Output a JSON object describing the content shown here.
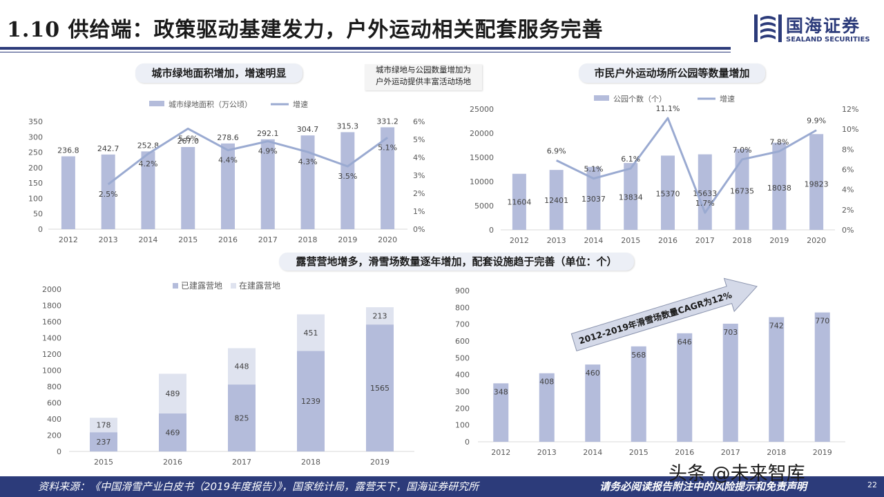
{
  "header": {
    "title": "1.10 供给端：政策驱动基建发力，户外运动相关配套服务完善",
    "logo_name": "国海证券",
    "logo_en": "SEALAND SECURITIES"
  },
  "labels": {
    "green_title": "城市绿地面积增加，增速明显",
    "note_line1": "城市绿地与公园数量增加为",
    "note_line2": "户外运动提供丰富活动场地",
    "park_title": "市民户外运动场所公园等数量增加",
    "camp_title": "露营营地增多，滑雪场数量逐年增加，配套设施趋于完善（单位：个）",
    "cagr_arrow": "2012-2019年滑雪场数量CAGR为12%"
  },
  "footer": {
    "source": "资料来源：《中国滑雪产业白皮书（2019年度报告）》，国家统计局，露营天下，国海证券研究所",
    "disclaimer": "请务必阅读报告附注中的风险提示和免责声明",
    "watermark": "头条 @未来智库",
    "page_number": "22"
  },
  "colors": {
    "bar": "#b4bcdb",
    "bar_light": "#dfe3ef",
    "line": "#9aaad1",
    "navy": "#2c3b7a"
  },
  "chart_data": [
    {
      "id": "green",
      "type": "bar+line",
      "categories": [
        "2012",
        "2013",
        "2014",
        "2015",
        "2016",
        "2017",
        "2018",
        "2019",
        "2020"
      ],
      "series": [
        {
          "name": "城市绿地面积（万公顷）",
          "type": "bar",
          "axis": "left",
          "values": [
            236.8,
            242.7,
            252.8,
            267.0,
            278.6,
            292.1,
            304.7,
            315.3,
            331.2
          ],
          "labels": [
            "236.8",
            "242.7",
            "252.8",
            "267.0",
            "278.6",
            "292.1",
            "304.7",
            "315.3",
            "331.2"
          ]
        },
        {
          "name": "增速",
          "type": "line",
          "axis": "right",
          "values": [
            null,
            2.5,
            4.2,
            5.6,
            4.4,
            4.9,
            4.3,
            3.5,
            5.1
          ],
          "labels": [
            "",
            "2.5%",
            "4.2%",
            "5.6%",
            "4.4%",
            "4.9%",
            "4.3%",
            "3.5%",
            "5.1%"
          ]
        }
      ],
      "ylim": [
        0,
        350
      ],
      "yticks": [
        "0",
        "50",
        "100",
        "150",
        "200",
        "250",
        "300",
        "350"
      ],
      "y2lim": [
        0,
        6
      ],
      "y2ticks": [
        "0%",
        "1%",
        "2%",
        "3%",
        "4%",
        "5%",
        "6%"
      ],
      "legend": "top"
    },
    {
      "id": "parks",
      "type": "bar+line",
      "categories": [
        "2012",
        "2013",
        "2014",
        "2015",
        "2016",
        "2017",
        "2018",
        "2019",
        "2020"
      ],
      "series": [
        {
          "name": "公园个数（个）",
          "type": "bar",
          "axis": "left",
          "values": [
            11604,
            12401,
            13037,
            13834,
            15370,
            15633,
            16735,
            18038,
            19823
          ],
          "labels": [
            "11604",
            "12401",
            "13037",
            "13834",
            "15370",
            "15633",
            "16735",
            "18038",
            "19823"
          ]
        },
        {
          "name": "增速",
          "type": "line",
          "axis": "right",
          "values": [
            null,
            6.9,
            5.1,
            6.1,
            11.1,
            1.7,
            7.0,
            7.8,
            9.9
          ],
          "labels": [
            "",
            "6.9%",
            "5.1%",
            "6.1%",
            "11.1%",
            "1.7%",
            "7.0%",
            "7.8%",
            "9.9%"
          ]
        }
      ],
      "ylim": [
        0,
        25000
      ],
      "yticks": [
        "0",
        "5000",
        "10000",
        "15000",
        "20000",
        "25000"
      ],
      "y2lim": [
        0,
        12
      ],
      "y2ticks": [
        "0%",
        "2%",
        "4%",
        "6%",
        "8%",
        "10%",
        "12%"
      ],
      "legend": "top"
    },
    {
      "id": "camps",
      "type": "stacked-bar",
      "categories": [
        "2015",
        "2016",
        "2017",
        "2018",
        "2019"
      ],
      "series": [
        {
          "name": "已建露营地",
          "values": [
            237,
            469,
            825,
            1239,
            1565
          ]
        },
        {
          "name": "在建露营地",
          "values": [
            178,
            489,
            448,
            451,
            213
          ]
        }
      ],
      "ylim": [
        0,
        2000
      ],
      "yticks": [
        "0",
        "200",
        "400",
        "600",
        "800",
        "1000",
        "1200",
        "1400",
        "1600",
        "1800",
        "2000"
      ],
      "legend": "top"
    },
    {
      "id": "ski",
      "type": "bar",
      "categories": [
        "2012",
        "2013",
        "2014",
        "2015",
        "2016",
        "2017",
        "2018",
        "2019"
      ],
      "values": [
        348,
        408,
        460,
        568,
        646,
        703,
        742,
        770
      ],
      "ylim": [
        0,
        900
      ],
      "yticks": [
        "0",
        "100",
        "200",
        "300",
        "400",
        "500",
        "600",
        "700",
        "800",
        "900"
      ]
    }
  ]
}
